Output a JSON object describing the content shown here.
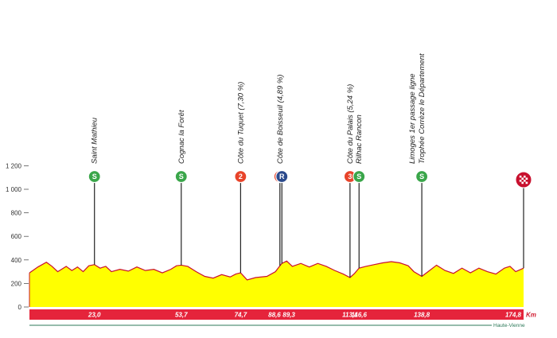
{
  "chart_data": {
    "type": "area",
    "title": "",
    "xlabel": "",
    "ylabel": "",
    "x_unit": "Km",
    "ylim": [
      0,
      1200
    ],
    "y_ticks": [
      "1 200",
      "1 000",
      "800",
      "600",
      "400",
      "200",
      "0"
    ],
    "y_tick_values": [
      1200,
      1000,
      800,
      600,
      400,
      200,
      0
    ],
    "total_km": 174.8,
    "region": "Haute-Vienne",
    "colors": {
      "fill": "#ffff00",
      "outline": "#c8102e",
      "band": "#e5243b",
      "sprint": "#3aa64a",
      "climb": "#e8442a",
      "feed": "#2b4a8c",
      "track": "#2e7a5a"
    },
    "profile": [
      {
        "x": 0,
        "y": 290
      },
      {
        "x": 3,
        "y": 340
      },
      {
        "x": 6,
        "y": 380
      },
      {
        "x": 8,
        "y": 345
      },
      {
        "x": 10,
        "y": 300
      },
      {
        "x": 13,
        "y": 345
      },
      {
        "x": 15,
        "y": 310
      },
      {
        "x": 17,
        "y": 340
      },
      {
        "x": 19,
        "y": 300
      },
      {
        "x": 21,
        "y": 350
      },
      {
        "x": 23,
        "y": 360
      },
      {
        "x": 25,
        "y": 330
      },
      {
        "x": 27,
        "y": 345
      },
      {
        "x": 29,
        "y": 300
      },
      {
        "x": 32,
        "y": 320
      },
      {
        "x": 35,
        "y": 305
      },
      {
        "x": 38,
        "y": 340
      },
      {
        "x": 41,
        "y": 310
      },
      {
        "x": 44,
        "y": 320
      },
      {
        "x": 47,
        "y": 290
      },
      {
        "x": 50,
        "y": 320
      },
      {
        "x": 52,
        "y": 350
      },
      {
        "x": 53.7,
        "y": 355
      },
      {
        "x": 56,
        "y": 345
      },
      {
        "x": 59,
        "y": 300
      },
      {
        "x": 62,
        "y": 260
      },
      {
        "x": 65,
        "y": 245
      },
      {
        "x": 68,
        "y": 275
      },
      {
        "x": 71,
        "y": 255
      },
      {
        "x": 73,
        "y": 280
      },
      {
        "x": 74.7,
        "y": 290
      },
      {
        "x": 77,
        "y": 230
      },
      {
        "x": 80,
        "y": 250
      },
      {
        "x": 84,
        "y": 260
      },
      {
        "x": 87,
        "y": 300
      },
      {
        "x": 88.6,
        "y": 350
      },
      {
        "x": 89.3,
        "y": 370
      },
      {
        "x": 91,
        "y": 390
      },
      {
        "x": 93,
        "y": 345
      },
      {
        "x": 96,
        "y": 370
      },
      {
        "x": 99,
        "y": 340
      },
      {
        "x": 102,
        "y": 370
      },
      {
        "x": 105,
        "y": 345
      },
      {
        "x": 108,
        "y": 310
      },
      {
        "x": 111,
        "y": 280
      },
      {
        "x": 113.4,
        "y": 250
      },
      {
        "x": 115,
        "y": 285
      },
      {
        "x": 116.6,
        "y": 330
      },
      {
        "x": 119,
        "y": 345
      },
      {
        "x": 122,
        "y": 360
      },
      {
        "x": 125,
        "y": 375
      },
      {
        "x": 128,
        "y": 385
      },
      {
        "x": 131,
        "y": 375
      },
      {
        "x": 134,
        "y": 350
      },
      {
        "x": 136,
        "y": 300
      },
      {
        "x": 138.8,
        "y": 260
      },
      {
        "x": 141,
        "y": 300
      },
      {
        "x": 144,
        "y": 355
      },
      {
        "x": 147,
        "y": 310
      },
      {
        "x": 150,
        "y": 285
      },
      {
        "x": 153,
        "y": 330
      },
      {
        "x": 156,
        "y": 290
      },
      {
        "x": 159,
        "y": 330
      },
      {
        "x": 162,
        "y": 300
      },
      {
        "x": 165,
        "y": 280
      },
      {
        "x": 168,
        "y": 330
      },
      {
        "x": 170,
        "y": 345
      },
      {
        "x": 172,
        "y": 300
      },
      {
        "x": 174.8,
        "y": 330
      }
    ],
    "km_labels": [
      {
        "x": 23.0,
        "label": "23,0"
      },
      {
        "x": 53.7,
        "label": "53,7"
      },
      {
        "x": 74.7,
        "label": "74,7"
      },
      {
        "x": 88.6,
        "label": "88,6"
      },
      {
        "x": 89.3,
        "label": "89,3"
      },
      {
        "x": 113.4,
        "label": "113,4"
      },
      {
        "x": 116.6,
        "label": "116,6"
      },
      {
        "x": 138.8,
        "label": "138,8"
      },
      {
        "x": 174.8,
        "label": "174,8"
      }
    ],
    "markers": [
      {
        "x": 23.0,
        "kind": "sprint",
        "symbol": "S",
        "lines": [
          "Saint Mathieu"
        ]
      },
      {
        "x": 53.7,
        "kind": "sprint",
        "symbol": "S",
        "lines": [
          "Cognac la Forêt"
        ]
      },
      {
        "x": 74.7,
        "kind": "climb",
        "symbol": "2",
        "lines": [
          "Côte du Tuquet (7,30 %)"
        ]
      },
      {
        "x": 88.6,
        "kind": "climb",
        "symbol": "3",
        "lines": [
          "Côte de Boisseuil (4,89 %)"
        ]
      },
      {
        "x": 89.3,
        "kind": "feed",
        "symbol": "R",
        "lines": []
      },
      {
        "x": 113.4,
        "kind": "climb",
        "symbol": "3",
        "lines": [
          "Côte du Palais (5,24 %)"
        ]
      },
      {
        "x": 116.6,
        "kind": "sprint",
        "symbol": "S",
        "lines": [
          "Rilhac Rancon"
        ]
      },
      {
        "x": 138.8,
        "kind": "sprint",
        "symbol": "S",
        "lines": [
          "Limoges 1er passage ligne",
          "Trophée Corrèze le Département"
        ]
      },
      {
        "x": 174.8,
        "kind": "finish",
        "symbol": "",
        "lines": []
      }
    ]
  }
}
